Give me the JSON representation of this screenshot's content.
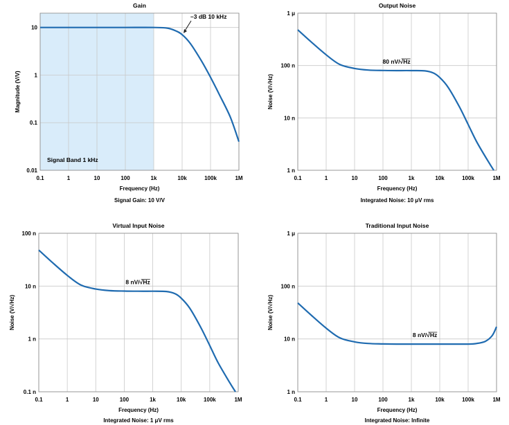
{
  "chart_data": [
    {
      "type": "line",
      "title": "Gain",
      "xlabel": "Frequency (Hz)",
      "ylabel": "Magnitude (V/V)",
      "footer": "Signal Gain: 10 V/V",
      "x_scale": "log",
      "y_scale": "log",
      "xlim": [
        0.1,
        1000000
      ],
      "ylim": [
        0.01,
        20
      ],
      "x_ticks": [
        0.1,
        1,
        10,
        100,
        1000,
        10000,
        100000,
        1000000
      ],
      "x_tick_labels": [
        "0.1",
        "1",
        "10",
        "100",
        "1k",
        "10k",
        "100k",
        "1M"
      ],
      "y_ticks": [
        0.01,
        0.1,
        1,
        10
      ],
      "y_tick_labels": [
        "0.01",
        "0.1",
        "1",
        "10"
      ],
      "grid": true,
      "shaded_band": {
        "x_range": [
          0.1,
          1000
        ],
        "label": "Signal Band 1 kHz",
        "color": "#d9ecfa"
      },
      "annotations": [
        {
          "text": "–3 dB 10 kHz",
          "x": 10000,
          "y": 7.07
        }
      ],
      "series": [
        {
          "color": "#1f6bb0",
          "x": [
            0.1,
            1,
            10,
            100,
            1000,
            3000,
            6000,
            10000,
            20000,
            50000,
            100000,
            200000,
            500000,
            1000000
          ],
          "y": [
            10,
            10,
            10,
            10,
            10,
            9.7,
            8.5,
            7.07,
            4.5,
            1.9,
            0.9,
            0.4,
            0.13,
            0.04
          ]
        }
      ]
    },
    {
      "type": "line",
      "title": "Output Noise",
      "xlabel": "Frequency (Hz)",
      "ylabel": "Noise (V/√Hz)",
      "footer": "Integrated Noise: 10 μV rms",
      "x_scale": "log",
      "y_scale": "log",
      "xlim": [
        0.1,
        1000000
      ],
      "ylim": [
        1e-09,
        1e-06
      ],
      "x_ticks": [
        0.1,
        1,
        10,
        100,
        1000,
        10000,
        100000,
        1000000
      ],
      "x_tick_labels": [
        "0.1",
        "1",
        "10",
        "100",
        "1k",
        "10k",
        "100k",
        "1M"
      ],
      "y_ticks": [
        1e-09,
        1e-08,
        1e-07,
        1e-06
      ],
      "y_tick_labels": [
        "1 n",
        "10 n",
        "100 n",
        "1 μ"
      ],
      "grid": true,
      "annotations": [
        {
          "text": "80 nV/√Hz",
          "x": 300,
          "y": 9.6e-08
        }
      ],
      "series": [
        {
          "color": "#1f6bb0",
          "x": [
            0.1,
            0.3,
            1,
            3,
            10,
            30,
            100,
            300,
            1000,
            3000,
            6000,
            10000,
            20000,
            50000,
            100000,
            200000,
            500000,
            800000
          ],
          "y": [
            4.8e-07,
            2.8e-07,
            1.6e-07,
            1.05e-07,
            8.8e-08,
            8.2e-08,
            8.05e-08,
            8e-08,
            8e-08,
            7.9e-08,
            7.2e-08,
            5.9e-08,
            3.8e-08,
            1.6e-08,
            7.5e-09,
            3.5e-09,
            1.5e-09,
            1e-09
          ]
        }
      ]
    },
    {
      "type": "line",
      "title": "Virtual Input Noise",
      "xlabel": "Frequency (Hz)",
      "ylabel": "Noise (V/√Hz)",
      "footer": "Integrated Noise: 1 μV rms",
      "x_scale": "log",
      "y_scale": "log",
      "xlim": [
        0.1,
        1000000
      ],
      "ylim": [
        1e-10,
        1e-07
      ],
      "x_ticks": [
        0.1,
        1,
        10,
        100,
        1000,
        10000,
        100000,
        1000000
      ],
      "x_tick_labels": [
        "0.1",
        "1",
        "10",
        "100",
        "1k",
        "10k",
        "100k",
        "1M"
      ],
      "y_ticks": [
        1e-10,
        1e-09,
        1e-08,
        1e-07
      ],
      "y_tick_labels": [
        "0.1 n",
        "1 n",
        "10 n",
        "100 n"
      ],
      "grid": true,
      "annotations": [
        {
          "text": "8 nV/√Hz",
          "x": 300,
          "y": 9.6e-09
        }
      ],
      "series": [
        {
          "color": "#1f6bb0",
          "x": [
            0.1,
            0.3,
            1,
            3,
            10,
            30,
            100,
            300,
            1000,
            3000,
            6000,
            10000,
            20000,
            50000,
            100000,
            200000,
            500000,
            800000
          ],
          "y": [
            4.8e-08,
            2.8e-08,
            1.6e-08,
            1.05e-08,
            8.8e-09,
            8.2e-09,
            8.05e-09,
            8e-09,
            8e-09,
            7.9e-09,
            7.2e-09,
            5.9e-09,
            3.8e-09,
            1.6e-09,
            7.5e-10,
            3.5e-10,
            1.5e-10,
            1e-10
          ]
        }
      ]
    },
    {
      "type": "line",
      "title": "Traditional Input Noise",
      "xlabel": "Frequency (Hz)",
      "ylabel": "Noise (V/√Hz)",
      "footer": "Integrated Noise: Infinite",
      "x_scale": "log",
      "y_scale": "log",
      "xlim": [
        0.1,
        1000000
      ],
      "ylim": [
        1e-09,
        1e-06
      ],
      "x_ticks": [
        0.1,
        1,
        10,
        100,
        1000,
        10000,
        100000,
        1000000
      ],
      "x_tick_labels": [
        "0.1",
        "1",
        "10",
        "100",
        "1k",
        "10k",
        "100k",
        "1M"
      ],
      "y_ticks": [
        1e-09,
        1e-08,
        1e-07,
        1e-06
      ],
      "y_tick_labels": [
        "1 n",
        "10 n",
        "100 n",
        "1 μ"
      ],
      "grid": true,
      "annotations": [
        {
          "text": "8 nV/√Hz",
          "x": 3000,
          "y": 9.6e-09
        }
      ],
      "series": [
        {
          "color": "#1f6bb0",
          "x": [
            0.1,
            0.3,
            1,
            3,
            10,
            30,
            100,
            300,
            1000,
            10000,
            100000,
            200000,
            400000,
            700000,
            1000000
          ],
          "y": [
            4.8e-08,
            2.8e-08,
            1.6e-08,
            1.05e-08,
            8.8e-09,
            8.2e-09,
            8.05e-09,
            8e-09,
            8e-09,
            8e-09,
            8e-09,
            8.2e-09,
            9e-09,
            1.15e-08,
            1.7e-08
          ]
        }
      ]
    }
  ]
}
